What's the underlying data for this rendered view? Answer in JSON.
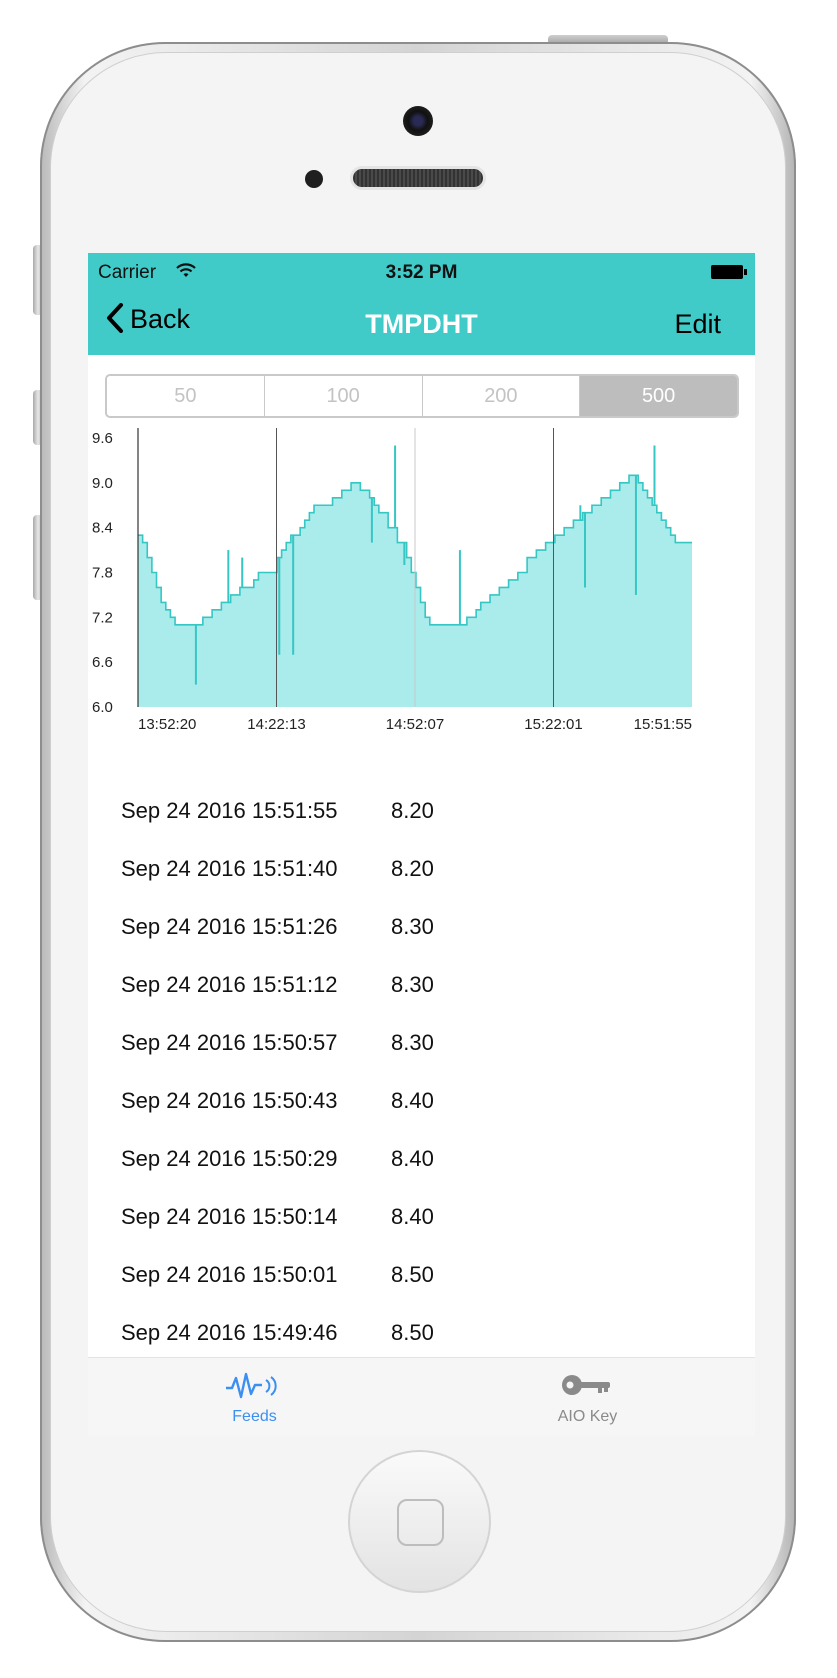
{
  "status": {
    "carrier": "Carrier",
    "time": "3:52 PM"
  },
  "nav": {
    "back_label": "Back",
    "title": "TMPDHT",
    "edit_label": "Edit"
  },
  "segments": [
    {
      "label": "50",
      "selected": false
    },
    {
      "label": "100",
      "selected": false
    },
    {
      "label": "200",
      "selected": false
    },
    {
      "label": "500",
      "selected": true
    }
  ],
  "chart_data": {
    "type": "area",
    "title": "",
    "xlabel": "",
    "ylabel": "",
    "ylim": [
      6.0,
      9.6
    ],
    "y_ticks": [
      "6.0",
      "6.6",
      "7.2",
      "7.8",
      "8.4",
      "9.0",
      "9.6"
    ],
    "x_tick_labels": [
      "13:52:20",
      "14:22:13",
      "14:52:07",
      "15:22:01",
      "15:51:55"
    ],
    "x_range_minutes": [
      0,
      119.6
    ],
    "colors": {
      "fill": "#aaeceb",
      "line": "#36c6c4"
    },
    "series": [
      {
        "x": [
          0,
          1,
          2,
          3,
          4,
          5,
          6,
          7,
          8,
          10,
          12,
          14,
          15,
          16,
          17,
          18,
          19,
          20,
          22,
          24,
          25,
          26,
          28,
          30,
          31,
          32,
          33,
          35,
          36,
          37,
          38,
          40,
          42,
          44,
          46,
          48,
          50,
          51,
          52,
          54,
          56,
          58,
          59,
          60,
          61,
          62,
          63,
          64,
          65,
          66,
          67,
          68,
          70,
          71,
          72,
          73,
          74,
          76,
          78,
          80,
          82,
          84,
          86,
          88,
          90,
          92,
          94,
          95,
          96,
          98,
          100,
          102,
          104,
          106,
          108,
          109,
          110,
          111,
          112,
          113,
          114,
          115,
          116,
          117,
          118,
          119,
          119.6
        ],
        "y": [
          8.3,
          8.2,
          8.0,
          7.8,
          7.6,
          7.4,
          7.3,
          7.2,
          7.1,
          7.1,
          7.1,
          7.2,
          7.2,
          7.3,
          7.3,
          7.4,
          7.4,
          7.5,
          7.6,
          7.6,
          7.7,
          7.8,
          7.8,
          8.0,
          8.1,
          8.2,
          8.3,
          8.4,
          8.5,
          8.6,
          8.7,
          8.7,
          8.8,
          8.9,
          9.0,
          8.9,
          8.8,
          8.7,
          8.6,
          8.4,
          8.2,
          8.0,
          7.8,
          7.6,
          7.4,
          7.2,
          7.1,
          7.1,
          7.1,
          7.1,
          7.1,
          7.1,
          7.1,
          7.2,
          7.2,
          7.3,
          7.4,
          7.5,
          7.6,
          7.7,
          7.8,
          8.0,
          8.1,
          8.2,
          8.3,
          8.4,
          8.5,
          8.5,
          8.6,
          8.7,
          8.8,
          8.9,
          9.0,
          9.1,
          9.0,
          8.9,
          8.8,
          8.7,
          8.6,
          8.5,
          8.4,
          8.3,
          8.2,
          8.2,
          8.2,
          8.2,
          8.2
        ]
      }
    ],
    "spikes": [
      {
        "x": 12.5,
        "y": 6.3
      },
      {
        "x": 19.5,
        "y": 8.1
      },
      {
        "x": 22.5,
        "y": 8.0
      },
      {
        "x": 30.5,
        "y": 6.7
      },
      {
        "x": 33.5,
        "y": 6.7
      },
      {
        "x": 50.5,
        "y": 8.2
      },
      {
        "x": 55.5,
        "y": 9.5
      },
      {
        "x": 57.5,
        "y": 7.9
      },
      {
        "x": 69.5,
        "y": 8.1
      },
      {
        "x": 95.5,
        "y": 8.7
      },
      {
        "x": 96.5,
        "y": 7.6
      },
      {
        "x": 107.5,
        "y": 7.5
      },
      {
        "x": 111.5,
        "y": 9.5
      }
    ],
    "grid_x": true,
    "grid_y": false
  },
  "readings": [
    {
      "timestamp": "Sep 24 2016 15:51:55",
      "value": "8.20"
    },
    {
      "timestamp": "Sep 24 2016 15:51:40",
      "value": "8.20"
    },
    {
      "timestamp": "Sep 24 2016 15:51:26",
      "value": "8.30"
    },
    {
      "timestamp": "Sep 24 2016 15:51:12",
      "value": "8.30"
    },
    {
      "timestamp": "Sep 24 2016 15:50:57",
      "value": "8.30"
    },
    {
      "timestamp": "Sep 24 2016 15:50:43",
      "value": "8.40"
    },
    {
      "timestamp": "Sep 24 2016 15:50:29",
      "value": "8.40"
    },
    {
      "timestamp": "Sep 24 2016 15:50:14",
      "value": "8.40"
    },
    {
      "timestamp": "Sep 24 2016 15:50:01",
      "value": "8.50"
    },
    {
      "timestamp": "Sep 24 2016 15:49:46",
      "value": "8.50"
    }
  ],
  "tabs": [
    {
      "label": "Feeds",
      "icon": "feeds-wave-icon",
      "active": true
    },
    {
      "label": "AIO Key",
      "icon": "key-icon",
      "active": false
    }
  ]
}
